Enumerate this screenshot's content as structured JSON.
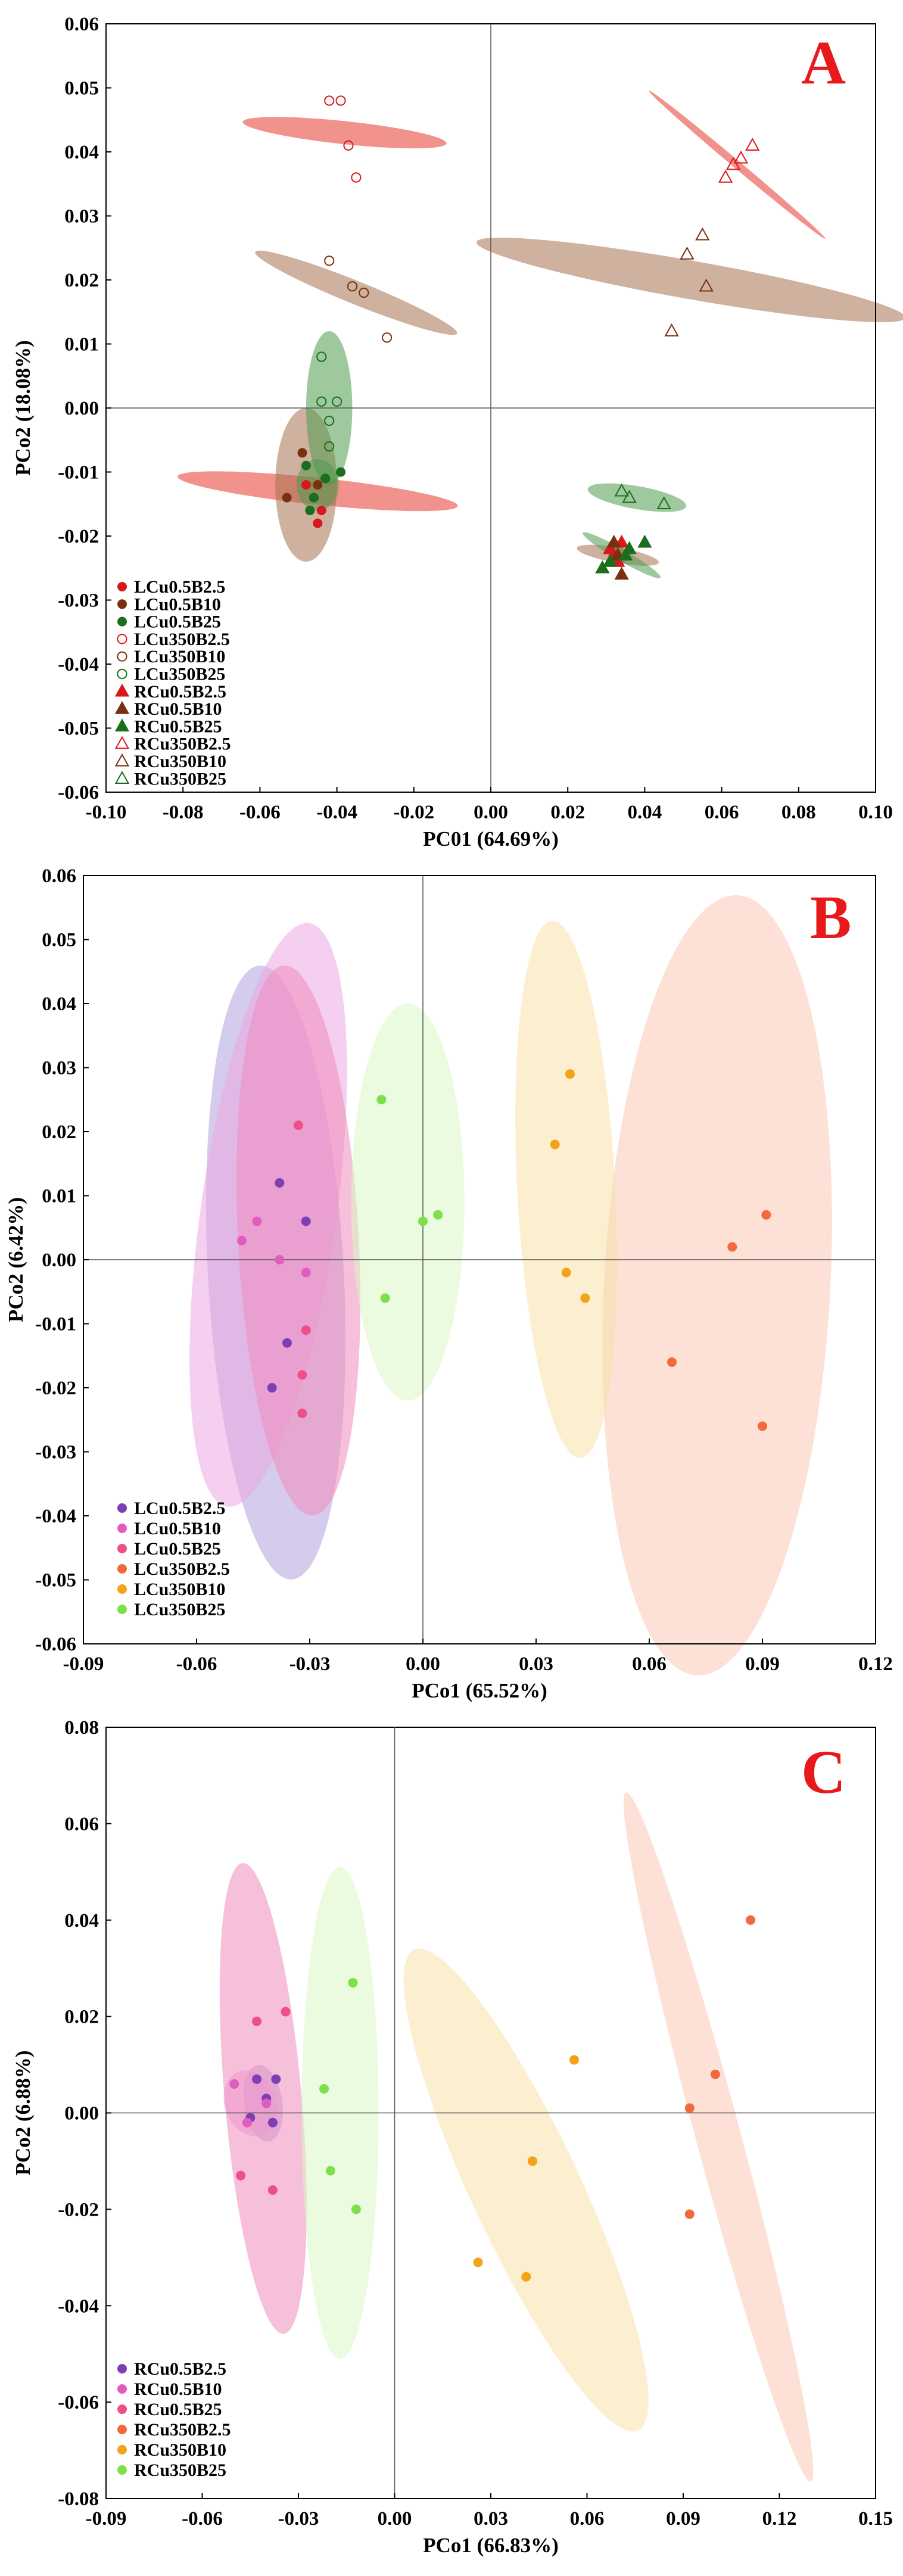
{
  "chart_data": [
    {
      "panel": "A",
      "type": "scatter",
      "xlabel": "PC01 (64.69%)",
      "ylabel": "PCo2 (18.08%)",
      "xlim": [
        -0.1,
        0.1
      ],
      "ylim": [
        -0.06,
        0.06
      ],
      "xticks": [
        "-0.10",
        "-0.08",
        "-0.06",
        "-0.04",
        "-0.02",
        "0.00",
        "0.02",
        "0.04",
        "0.06",
        "0.08",
        "0.10"
      ],
      "yticks": [
        "-0.06",
        "-0.05",
        "-0.04",
        "-0.03",
        "-0.02",
        "-0.01",
        "0.00",
        "0.01",
        "0.02",
        "0.03",
        "0.04",
        "0.05",
        "0.06"
      ],
      "legend_position": "bottom-left",
      "series": [
        {
          "name": "LCu0.5B2.5",
          "color": "#d7191c",
          "marker": "circle",
          "filled": true,
          "points": [
            [
              -0.046,
              -0.014
            ],
            [
              -0.045,
              -0.018
            ],
            [
              -0.048,
              -0.012
            ],
            [
              -0.044,
              -0.016
            ]
          ],
          "ellipse": {
            "cx": -0.045,
            "cy": -0.013,
            "rx": 0.0035,
            "ry": 0.022,
            "angle": -84,
            "color": "#e8392d"
          }
        },
        {
          "name": "LCu0.5B10",
          "color": "#7b2f11",
          "marker": "circle",
          "filled": true,
          "points": [
            [
              -0.053,
              -0.014
            ],
            [
              -0.049,
              -0.007
            ],
            [
              -0.047,
              -0.016
            ],
            [
              -0.043,
              -0.011
            ],
            [
              -0.045,
              -0.012
            ]
          ],
          "ellipse": {
            "cx": -0.048,
            "cy": -0.012,
            "rx": 0.008,
            "ry": 0.012,
            "angle": 0,
            "color": "#a67150"
          }
        },
        {
          "name": "LCu0.5B25",
          "color": "#1b6e1b",
          "marker": "circle",
          "filled": true,
          "points": [
            [
              -0.048,
              -0.009
            ],
            [
              -0.046,
              -0.014
            ],
            [
              -0.043,
              -0.011
            ],
            [
              -0.039,
              -0.01
            ],
            [
              -0.047,
              -0.016
            ]
          ],
          "ellipse": {
            "cx": -0.045,
            "cy": -0.012,
            "rx": 0.0055,
            "ry": 0.004,
            "angle": 0,
            "color": "#4f9a4f"
          }
        },
        {
          "name": "LCu350B2.5",
          "color": "#d7191c",
          "marker": "circle",
          "filled": false,
          "points": [
            [
              -0.042,
              0.048
            ],
            [
              -0.039,
              0.048
            ],
            [
              -0.037,
              0.041
            ],
            [
              -0.035,
              0.036
            ]
          ],
          "ellipse": {
            "cx": -0.038,
            "cy": 0.043,
            "rx": 0.003,
            "ry": 0.016,
            "angle": -84,
            "color": "#e8392d"
          }
        },
        {
          "name": "LCu350B10",
          "color": "#7b2f11",
          "marker": "circle",
          "filled": false,
          "points": [
            [
              -0.042,
              0.023
            ],
            [
              -0.036,
              0.019
            ],
            [
              -0.033,
              0.018
            ],
            [
              -0.027,
              0.011
            ]
          ],
          "ellipse": {
            "cx": -0.035,
            "cy": 0.018,
            "rx": 0.003,
            "ry": 0.017,
            "angle": -68,
            "color": "#a67150"
          }
        },
        {
          "name": "LCu350B25",
          "color": "#1b6e1b",
          "marker": "circle",
          "filled": false,
          "points": [
            [
              -0.044,
              0.008
            ],
            [
              -0.044,
              0.001
            ],
            [
              -0.04,
              0.001
            ],
            [
              -0.042,
              -0.002
            ],
            [
              -0.042,
              -0.006
            ]
          ],
          "ellipse": {
            "cx": -0.042,
            "cy": 0.0,
            "rx": 0.006,
            "ry": 0.012,
            "angle": 0,
            "color": "#4f9a4f"
          }
        },
        {
          "name": "RCu0.5B2.5",
          "color": "#d7191c",
          "marker": "triangle",
          "filled": true,
          "points": [
            [
              0.031,
              -0.022
            ],
            [
              0.033,
              -0.024
            ],
            [
              0.034,
              -0.021
            ],
            [
              0.032,
              -0.023
            ]
          ],
          "ellipse": {
            "cx": 0.033,
            "cy": -0.023,
            "rx": 0.0025,
            "ry": 0.0015,
            "angle": 0,
            "color": "#e8392d"
          }
        },
        {
          "name": "RCu0.5B10",
          "color": "#7b2f11",
          "marker": "triangle",
          "filled": true,
          "points": [
            [
              0.032,
              -0.021
            ],
            [
              0.034,
              -0.026
            ],
            [
              0.033,
              -0.023
            ]
          ],
          "ellipse": {
            "cx": 0.033,
            "cy": -0.023,
            "rx": 0.002,
            "ry": 0.0065,
            "angle": -80,
            "color": "#a67150"
          }
        },
        {
          "name": "RCu0.5B25",
          "color": "#1b6e1b",
          "marker": "triangle",
          "filled": true,
          "points": [
            [
              0.029,
              -0.025
            ],
            [
              0.031,
              -0.024
            ],
            [
              0.036,
              -0.022
            ],
            [
              0.04,
              -0.021
            ],
            [
              0.035,
              -0.023
            ]
          ],
          "ellipse": {
            "cx": 0.034,
            "cy": -0.023,
            "rx": 0.0015,
            "ry": 0.007,
            "angle": -60,
            "color": "#4f9a4f"
          }
        },
        {
          "name": "RCu350B2.5",
          "color": "#d7191c",
          "marker": "triangle",
          "filled": false,
          "points": [
            [
              0.061,
              0.036
            ],
            [
              0.063,
              0.038
            ],
            [
              0.065,
              0.039
            ],
            [
              0.068,
              0.041
            ]
          ],
          "ellipse": {
            "cx": 0.064,
            "cy": 0.038,
            "rx": 0.001,
            "ry": 0.018,
            "angle": -50,
            "color": "#e8392d"
          }
        },
        {
          "name": "RCu350B10",
          "color": "#7b2f11",
          "marker": "triangle",
          "filled": false,
          "points": [
            [
              0.047,
              0.012
            ],
            [
              0.051,
              0.024
            ],
            [
              0.055,
              0.027
            ],
            [
              0.056,
              0.019
            ]
          ],
          "ellipse": {
            "cx": 0.052,
            "cy": 0.02,
            "rx": 0.005,
            "ry": 0.034,
            "angle": -80,
            "color": "#a67150"
          }
        },
        {
          "name": "RCu350B25",
          "color": "#1b6e1b",
          "marker": "triangle",
          "filled": false,
          "points": [
            [
              0.034,
              -0.013
            ],
            [
              0.036,
              -0.014
            ],
            [
              0.045,
              -0.015
            ]
          ],
          "ellipse": {
            "cx": 0.038,
            "cy": -0.014,
            "rx": 0.013,
            "ry": 0.0018,
            "angle": 10,
            "color": "#4f9a4f"
          }
        }
      ]
    },
    {
      "panel": "B",
      "type": "scatter",
      "xlabel": "PCo1 (65.52%)",
      "ylabel": "PCo2 (6.42%)",
      "xlim": [
        -0.09,
        0.12
      ],
      "ylim": [
        -0.06,
        0.06
      ],
      "xticks": [
        "-0.09",
        "-0.06",
        "-0.03",
        "0.00",
        "0.03",
        "0.06",
        "0.09",
        "0.12"
      ],
      "yticks": [
        "-0.06",
        "-0.05",
        "-0.04",
        "-0.03",
        "-0.02",
        "-0.01",
        "0.00",
        "0.01",
        "0.02",
        "0.03",
        "0.04",
        "0.05",
        "0.06"
      ],
      "legend_position": "bottom-left",
      "series": [
        {
          "name": "LCu0.5B2.5",
          "color": "#7d3fb5",
          "marker": "circle",
          "filled": true,
          "points": [
            [
              -0.038,
              0.012
            ],
            [
              -0.031,
              0.006
            ],
            [
              -0.036,
              -0.013
            ],
            [
              -0.04,
              -0.02
            ]
          ],
          "ellipse": {
            "cx": -0.039,
            "cy": -0.002,
            "rx": 0.018,
            "ry": 0.048,
            "angle": -3,
            "color": "#b3a1dc"
          }
        },
        {
          "name": "LCu0.5B10",
          "color": "#e05cbe",
          "marker": "circle",
          "filled": true,
          "points": [
            [
              -0.048,
              0.003
            ],
            [
              -0.044,
              0.006
            ],
            [
              -0.038,
              0.0
            ],
            [
              -0.031,
              -0.002
            ]
          ],
          "ellipse": {
            "cx": -0.041,
            "cy": 0.007,
            "rx": 0.018,
            "ry": 0.046,
            "angle": 8,
            "color": "#eba7e2"
          }
        },
        {
          "name": "LCu0.5B25",
          "color": "#ef4f88",
          "marker": "circle",
          "filled": true,
          "points": [
            [
              -0.033,
              0.021
            ],
            [
              -0.031,
              -0.011
            ],
            [
              -0.032,
              -0.018
            ],
            [
              -0.032,
              -0.024
            ]
          ],
          "ellipse": {
            "cx": -0.033,
            "cy": 0.003,
            "rx": 0.016,
            "ry": 0.043,
            "angle": -3,
            "color": "#f08cbc"
          }
        },
        {
          "name": "LCu350B2.5",
          "color": "#f2693b",
          "marker": "circle",
          "filled": true,
          "points": [
            [
              0.091,
              0.007
            ],
            [
              0.082,
              0.002
            ],
            [
              0.066,
              -0.016
            ],
            [
              0.09,
              -0.026
            ]
          ],
          "ellipse": {
            "cx": 0.078,
            "cy": -0.004,
            "rx": 0.03,
            "ry": 0.061,
            "angle": 3,
            "color": "#fcc9b7"
          }
        },
        {
          "name": "LCu350B10",
          "color": "#f3a219",
          "marker": "circle",
          "filled": true,
          "points": [
            [
              0.039,
              0.029
            ],
            [
              0.035,
              0.018
            ],
            [
              0.038,
              -0.002
            ],
            [
              0.043,
              -0.006
            ]
          ],
          "ellipse": {
            "cx": 0.038,
            "cy": 0.011,
            "rx": 0.013,
            "ry": 0.042,
            "angle": -3,
            "color": "#f8e1a9"
          }
        },
        {
          "name": "LCu350B25",
          "color": "#7de04b",
          "marker": "circle",
          "filled": true,
          "points": [
            [
              -0.011,
              0.025
            ],
            [
              0.0,
              0.006
            ],
            [
              0.004,
              0.007
            ],
            [
              -0.01,
              -0.006
            ]
          ],
          "ellipse": {
            "cx": -0.004,
            "cy": 0.009,
            "rx": 0.015,
            "ry": 0.031,
            "angle": 0,
            "color": "#daf7c4"
          }
        }
      ]
    },
    {
      "panel": "C",
      "type": "scatter",
      "xlabel": "PCo1 (66.83%)",
      "ylabel": "PCo2 (6.88%)",
      "xlim": [
        -0.09,
        0.15
      ],
      "ylim": [
        -0.08,
        0.08
      ],
      "xticks": [
        "-0.09",
        "-0.06",
        "-0.03",
        "0.00",
        "0.03",
        "0.06",
        "0.09",
        "0.12",
        "0.15"
      ],
      "yticks": [
        "-0.08",
        "-0.06",
        "-0.04",
        "-0.02",
        "0.00",
        "0.02",
        "0.04",
        "0.06",
        "0.08"
      ],
      "legend_position": "bottom-left",
      "series": [
        {
          "name": "RCu0.5B2.5",
          "color": "#7d3fb5",
          "marker": "circle",
          "filled": true,
          "points": [
            [
              -0.043,
              0.007
            ],
            [
              -0.037,
              0.007
            ],
            [
              -0.04,
              0.003
            ],
            [
              -0.045,
              -0.001
            ],
            [
              -0.038,
              -0.002
            ]
          ],
          "ellipse": {
            "cx": -0.041,
            "cy": 0.002,
            "rx": 0.006,
            "ry": 0.008,
            "angle": -8,
            "color": "#b3a1dc"
          }
        },
        {
          "name": "RCu0.5B10",
          "color": "#e05cbe",
          "marker": "circle",
          "filled": true,
          "points": [
            [
              -0.05,
              0.006
            ],
            [
              -0.046,
              -0.002
            ],
            [
              -0.04,
              0.002
            ]
          ],
          "ellipse": {
            "cx": -0.045,
            "cy": 0.002,
            "rx": 0.008,
            "ry": 0.007,
            "angle": -20,
            "color": "#eba7e2"
          }
        },
        {
          "name": "RCu0.5B25",
          "color": "#ef4f88",
          "marker": "circle",
          "filled": true,
          "points": [
            [
              -0.043,
              0.019
            ],
            [
              -0.034,
              0.021
            ],
            [
              -0.048,
              -0.013
            ],
            [
              -0.038,
              -0.016
            ]
          ],
          "ellipse": {
            "cx": -0.041,
            "cy": 0.003,
            "rx": 0.012,
            "ry": 0.049,
            "angle": -5,
            "color": "#f08cbc"
          }
        },
        {
          "name": "RCu350B2.5",
          "color": "#f2693b",
          "marker": "circle",
          "filled": true,
          "points": [
            [
              0.111,
              0.04
            ],
            [
              0.1,
              0.008
            ],
            [
              0.092,
              0.001
            ],
            [
              0.092,
              -0.021
            ]
          ],
          "ellipse": {
            "cx": 0.101,
            "cy": -0.005,
            "rx": 0.007,
            "ry": 0.074,
            "angle": -15,
            "color": "#fcc9b7"
          }
        },
        {
          "name": "RCu350B10",
          "color": "#f3a219",
          "marker": "circle",
          "filled": true,
          "points": [
            [
              0.056,
              0.011
            ],
            [
              0.043,
              -0.01
            ],
            [
              0.026,
              -0.031
            ],
            [
              0.041,
              -0.034
            ]
          ],
          "ellipse": {
            "cx": 0.041,
            "cy": -0.016,
            "rx": 0.017,
            "ry": 0.055,
            "angle": -25,
            "color": "#f8e1a9"
          }
        },
        {
          "name": "RCu350B25",
          "color": "#7de04b",
          "marker": "circle",
          "filled": true,
          "points": [
            [
              -0.013,
              0.027
            ],
            [
              -0.022,
              0.005
            ],
            [
              -0.02,
              -0.012
            ],
            [
              -0.012,
              -0.02
            ]
          ],
          "ellipse": {
            "cx": -0.017,
            "cy": 0.0,
            "rx": 0.012,
            "ry": 0.051,
            "angle": 0,
            "color": "#daf7c4"
          }
        }
      ]
    }
  ]
}
